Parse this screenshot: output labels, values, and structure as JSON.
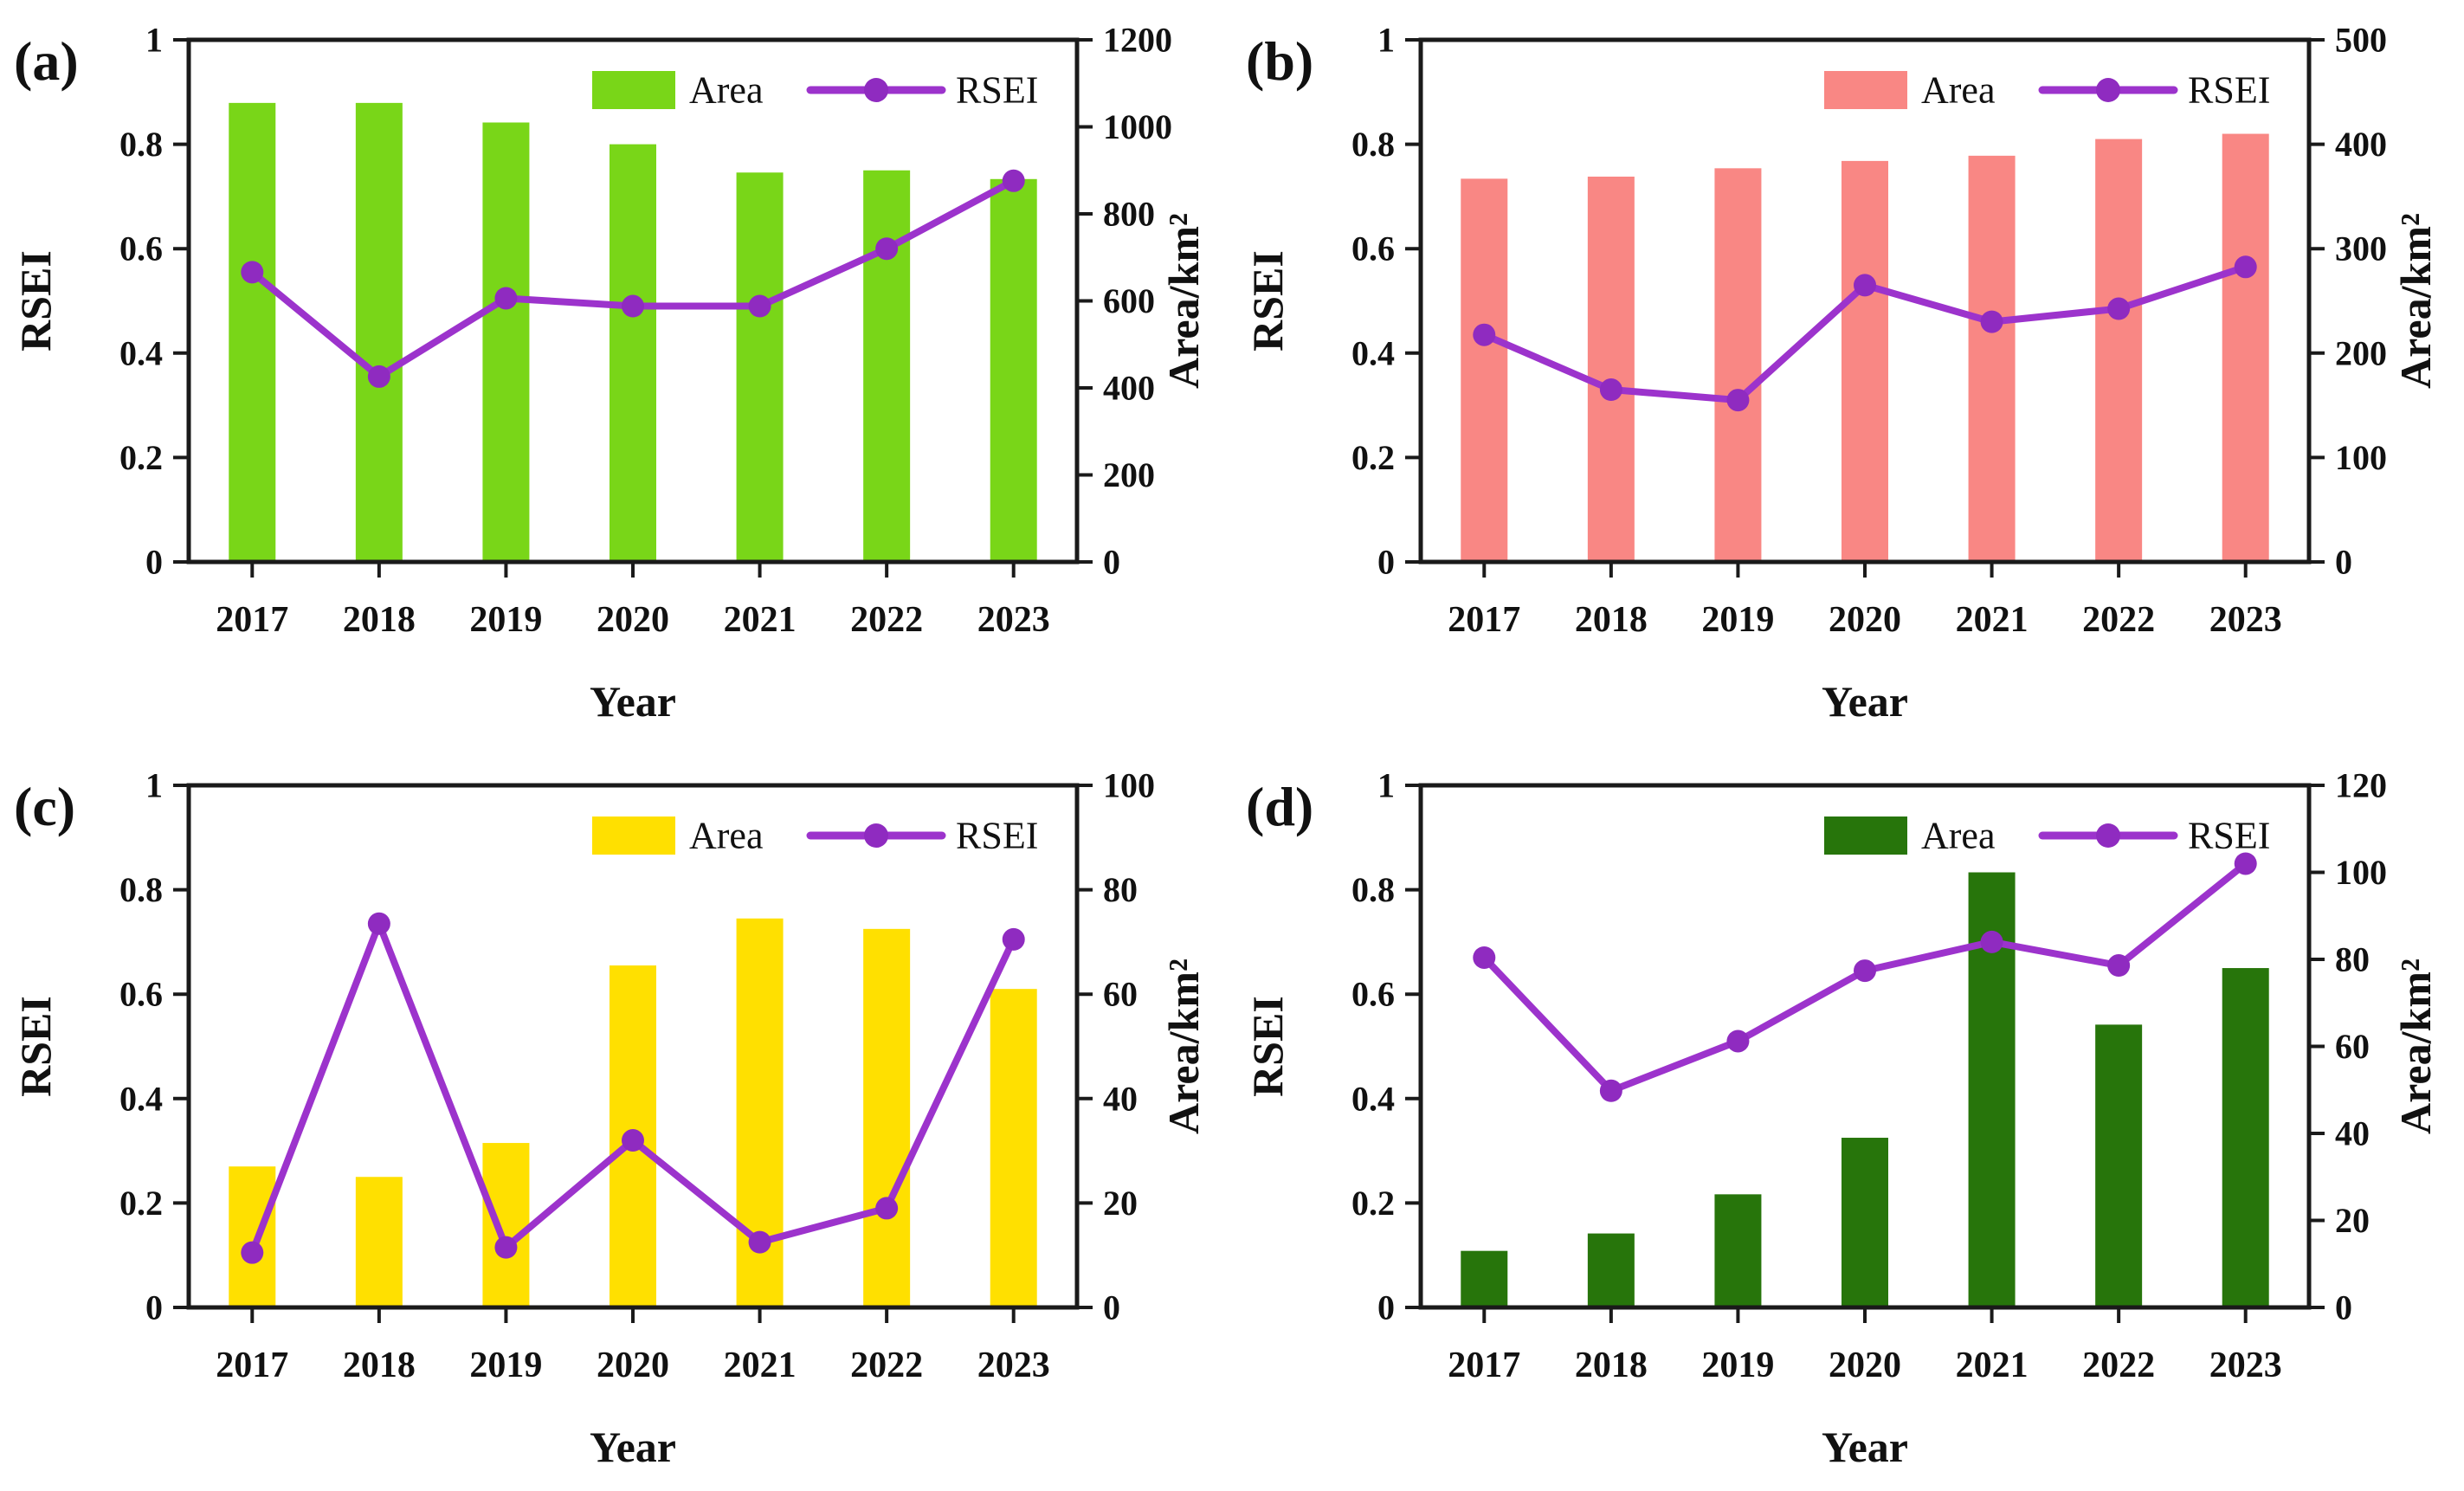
{
  "figure": {
    "background": "#ffffff",
    "frame_color": "#1a1a1a",
    "line_color": "#9C33CC",
    "marker_color": "#8F2BC0",
    "legend_labels": {
      "area": "Area",
      "rsei": "RSEI"
    }
  },
  "chart_data": [
    {
      "id": "a",
      "panel_label": "(a)",
      "type": "bar",
      "categories": [
        "2017",
        "2018",
        "2019",
        "2020",
        "2021",
        "2022",
        "2023"
      ],
      "series": [
        {
          "name": "Area",
          "kind": "bar",
          "axis": "right",
          "color": "#79D618",
          "values": [
            1055,
            1055,
            1010,
            960,
            895,
            900,
            880
          ]
        },
        {
          "name": "RSEI",
          "kind": "line",
          "axis": "left",
          "color": "#9C33CC",
          "values": [
            0.555,
            0.355,
            0.505,
            0.49,
            0.49,
            0.6,
            0.73
          ]
        }
      ],
      "left_axis": {
        "label": "RSEI",
        "min": 0,
        "max": 1,
        "ticks": [
          "0",
          "0.2",
          "0.4",
          "0.6",
          "0.8",
          "1"
        ]
      },
      "right_axis": {
        "label": "Area/km²",
        "min": 0,
        "max": 1200,
        "ticks": [
          "0",
          "200",
          "400",
          "600",
          "800",
          "1000",
          "1200"
        ]
      },
      "xlabel": "Year",
      "legend": [
        "Area",
        "RSEI"
      ],
      "legend_position": "top-right",
      "grid": false
    },
    {
      "id": "b",
      "panel_label": "(b)",
      "type": "bar",
      "categories": [
        "2017",
        "2018",
        "2019",
        "2020",
        "2021",
        "2022",
        "2023"
      ],
      "series": [
        {
          "name": "Area",
          "kind": "bar",
          "axis": "right",
          "color": "#F98784",
          "values": [
            367,
            369,
            377,
            384,
            389,
            405,
            410
          ]
        },
        {
          "name": "RSEI",
          "kind": "line",
          "axis": "left",
          "color": "#9C33CC",
          "values": [
            0.435,
            0.33,
            0.31,
            0.53,
            0.46,
            0.485,
            0.565
          ]
        }
      ],
      "left_axis": {
        "label": "RSEI",
        "min": 0,
        "max": 1,
        "ticks": [
          "0",
          "0.2",
          "0.4",
          "0.6",
          "0.8",
          "1"
        ]
      },
      "right_axis": {
        "label": "Area/km²",
        "min": 0,
        "max": 500,
        "ticks": [
          "0",
          "100",
          "200",
          "300",
          "400",
          "500"
        ]
      },
      "xlabel": "Year",
      "legend": [
        "Area",
        "RSEI"
      ],
      "legend_position": "top-right",
      "grid": false
    },
    {
      "id": "c",
      "panel_label": "(c)",
      "type": "bar",
      "categories": [
        "2017",
        "2018",
        "2019",
        "2020",
        "2021",
        "2022",
        "2023"
      ],
      "series": [
        {
          "name": "Area",
          "kind": "bar",
          "axis": "right",
          "color": "#FFE000",
          "values": [
            27,
            25,
            31.5,
            65.5,
            74.5,
            72.5,
            61
          ]
        },
        {
          "name": "RSEI",
          "kind": "line",
          "axis": "left",
          "color": "#9C33CC",
          "values": [
            0.105,
            0.735,
            0.115,
            0.32,
            0.125,
            0.19,
            0.705
          ]
        }
      ],
      "left_axis": {
        "label": "RSEI",
        "min": 0,
        "max": 1,
        "ticks": [
          "0",
          "0.2",
          "0.4",
          "0.6",
          "0.8",
          "1"
        ]
      },
      "right_axis": {
        "label": "Area/km²",
        "min": 0,
        "max": 100,
        "ticks": [
          "0",
          "20",
          "40",
          "60",
          "80",
          "100"
        ]
      },
      "xlabel": "Year",
      "legend": [
        "Area",
        "RSEI"
      ],
      "legend_position": "top-right",
      "grid": false
    },
    {
      "id": "d",
      "panel_label": "(d)",
      "type": "bar",
      "categories": [
        "2017",
        "2018",
        "2019",
        "2020",
        "2021",
        "2022",
        "2023"
      ],
      "series": [
        {
          "name": "Area",
          "kind": "bar",
          "axis": "right",
          "color": "#27750B",
          "values": [
            13,
            17,
            26,
            39,
            100,
            65,
            78
          ]
        },
        {
          "name": "RSEI",
          "kind": "line",
          "axis": "left",
          "color": "#9C33CC",
          "values": [
            0.67,
            0.415,
            0.51,
            0.645,
            0.7,
            0.655,
            0.85
          ]
        }
      ],
      "left_axis": {
        "label": "RSEI",
        "min": 0,
        "max": 1,
        "ticks": [
          "0",
          "0.2",
          "0.4",
          "0.6",
          "0.8",
          "1"
        ]
      },
      "right_axis": {
        "label": "Area/km²",
        "min": 0,
        "max": 120,
        "ticks": [
          "0",
          "20",
          "40",
          "60",
          "80",
          "100",
          "120"
        ]
      },
      "xlabel": "Year",
      "legend": [
        "Area",
        "RSEI"
      ],
      "legend_position": "top-right",
      "grid": false
    }
  ]
}
